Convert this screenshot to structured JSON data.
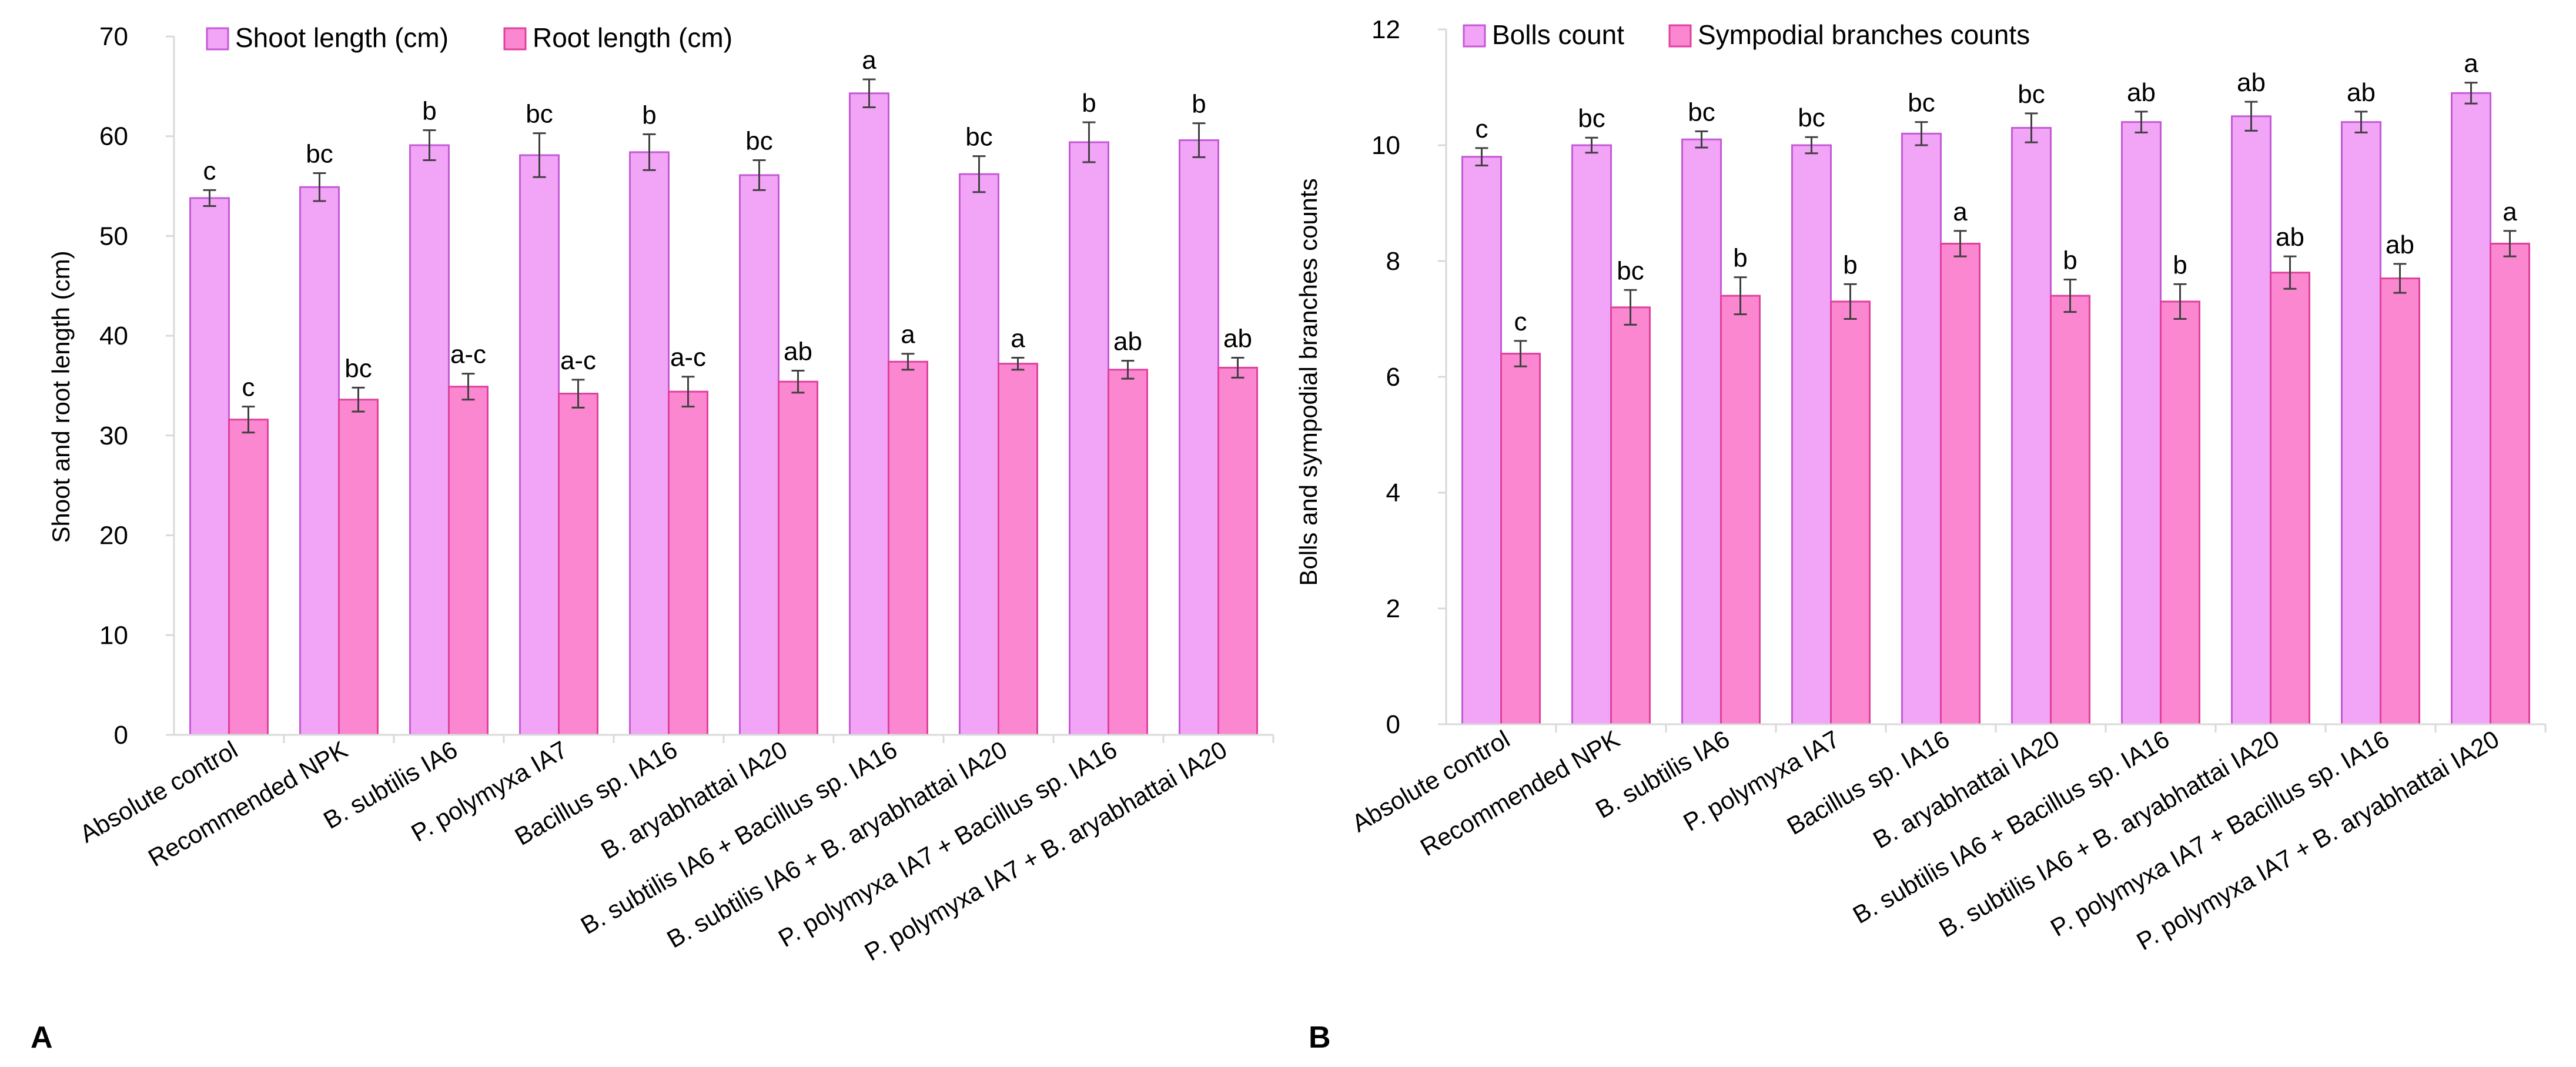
{
  "colors": {
    "series1_fill": "#f2a4f7",
    "series1_stroke": "#c45ad6",
    "series2_fill": "#fa87cf",
    "series2_stroke": "#e0409e",
    "axis": "#d9d9d9",
    "error": "#404040",
    "text": "#000000"
  },
  "chart_data": [
    {
      "type": "bar",
      "panel_label": "A",
      "title": "",
      "xlabel": "",
      "ylabel": "Shoot and root length (cm)",
      "ylim": [
        0,
        70
      ],
      "yticks": [
        0,
        10,
        20,
        30,
        40,
        50,
        60,
        70
      ],
      "grid": false,
      "legend_position": "top",
      "categories": [
        "Absolute control",
        "Recommended NPK",
        "B. subtilis IA6",
        "P. polymyxa IA7",
        "Bacillus sp. IA16",
        "B. aryabhattai IA20",
        "B. subtilis IA6 + Bacillus sp. IA16",
        "B. subtilis IA6 + B. aryabhattai IA20",
        "P. polymyxa IA7 + Bacillus sp. IA16",
        "P. polymyxa IA7 + B. aryabhattai IA20"
      ],
      "series": [
        {
          "name": "Shoot length (cm)",
          "values": [
            53.8,
            54.9,
            59.1,
            58.1,
            58.4,
            56.1,
            64.3,
            56.2,
            59.4,
            59.6
          ],
          "errors": [
            0.8,
            1.4,
            1.5,
            2.2,
            1.8,
            1.5,
            1.4,
            1.8,
            2.0,
            1.7
          ],
          "labels": [
            "c",
            "bc",
            "b",
            "bc",
            "b",
            "bc",
            "a",
            "bc",
            "b",
            "b"
          ]
        },
        {
          "name": "Root length (cm)",
          "values": [
            31.6,
            33.6,
            34.9,
            34.2,
            34.4,
            35.4,
            37.4,
            37.2,
            36.6,
            36.8
          ],
          "errors": [
            1.3,
            1.2,
            1.3,
            1.4,
            1.5,
            1.1,
            0.8,
            0.6,
            0.9,
            1.0
          ],
          "labels": [
            "c",
            "bc",
            "a-c",
            "a-c",
            "a-c",
            "ab",
            "a",
            "a",
            "ab",
            "ab"
          ]
        }
      ]
    },
    {
      "type": "bar",
      "panel_label": "B",
      "title": "",
      "xlabel": "",
      "ylabel": "Bolls and sympodial branches counts",
      "ylim": [
        0,
        12
      ],
      "yticks": [
        0,
        2,
        4,
        6,
        8,
        10,
        12
      ],
      "grid": false,
      "legend_position": "top",
      "categories": [
        "Absolute control",
        "Recommended NPK",
        "B. subtilis IA6",
        "P. polymyxa IA7",
        "Bacillus sp. IA16",
        "B. aryabhattai IA20",
        "B. subtilis IA6 + Bacillus sp. IA16",
        "B. subtilis IA6 + B. aryabhattai IA20",
        "P. polymyxa IA7 + Bacillus sp. IA16",
        "P. polymyxa IA7 + B. aryabhattai IA20"
      ],
      "series": [
        {
          "name": "Bolls count",
          "values": [
            9.8,
            10.0,
            10.1,
            10.0,
            10.2,
            10.3,
            10.4,
            10.5,
            10.4,
            10.9
          ],
          "errors": [
            0.15,
            0.13,
            0.14,
            0.14,
            0.2,
            0.25,
            0.18,
            0.25,
            0.18,
            0.18
          ],
          "labels": [
            "c",
            "bc",
            "bc",
            "bc",
            "bc",
            "bc",
            "ab",
            "ab",
            "ab",
            "a"
          ]
        },
        {
          "name": "Sympodial branches counts",
          "values": [
            6.4,
            7.2,
            7.4,
            7.3,
            8.3,
            7.4,
            7.3,
            7.8,
            7.7,
            8.3
          ],
          "errors": [
            0.22,
            0.3,
            0.32,
            0.3,
            0.22,
            0.28,
            0.3,
            0.28,
            0.25,
            0.22
          ],
          "labels": [
            "c",
            "bc",
            "b",
            "b",
            "a",
            "b",
            "b",
            "ab",
            "ab",
            "a"
          ]
        }
      ]
    }
  ]
}
